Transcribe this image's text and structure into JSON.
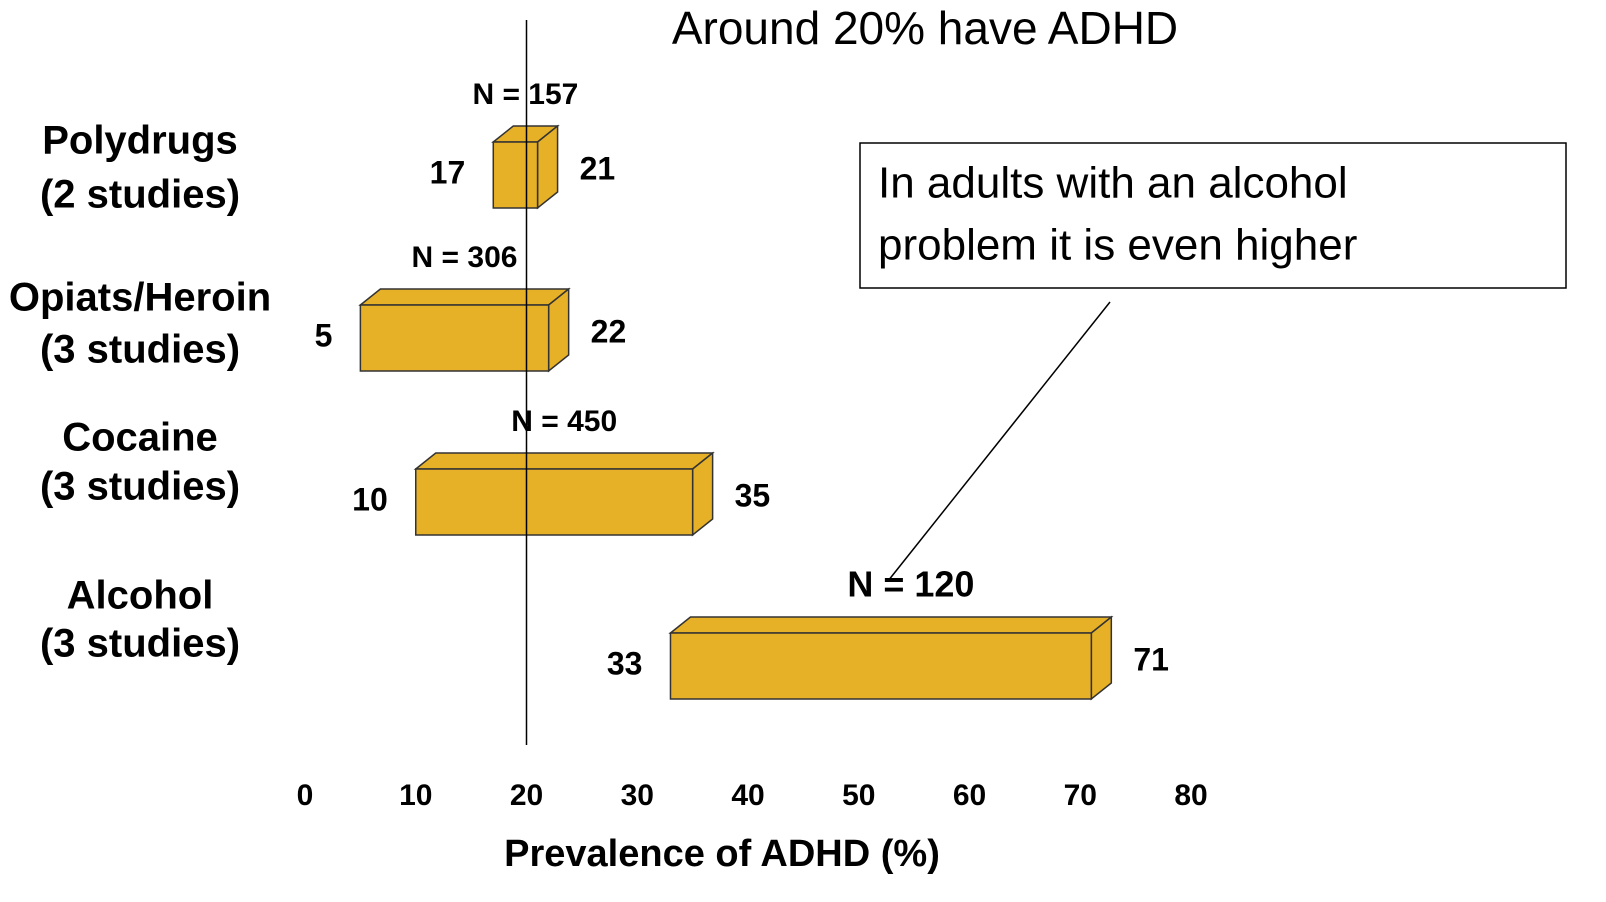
{
  "chart_data": {
    "type": "range-bar",
    "title": "Around 20% have ADHD",
    "categories": [
      "Polydrugs",
      "Opiats/Heroin",
      "Cocaine",
      "Alcohol"
    ],
    "category_notes": [
      "(2 studies)",
      "(3 studies)",
      "(3 studies)",
      "(3 studies)"
    ],
    "low": [
      17,
      5,
      10,
      33
    ],
    "high": [
      21,
      22,
      35,
      71
    ],
    "n_labels": [
      "N = 157",
      "N = 306",
      "N = 450",
      "N = 120"
    ],
    "reference_line": 20,
    "color": "#e6b027",
    "xlim": [
      0,
      80
    ],
    "xticks": [
      0,
      10,
      20,
      30,
      40,
      50,
      60,
      70,
      80
    ],
    "xlabel": "Prevalence of ADHD  (%)",
    "callout": [
      "In adults with an alcohol",
      "problem it is even higher"
    ]
  }
}
